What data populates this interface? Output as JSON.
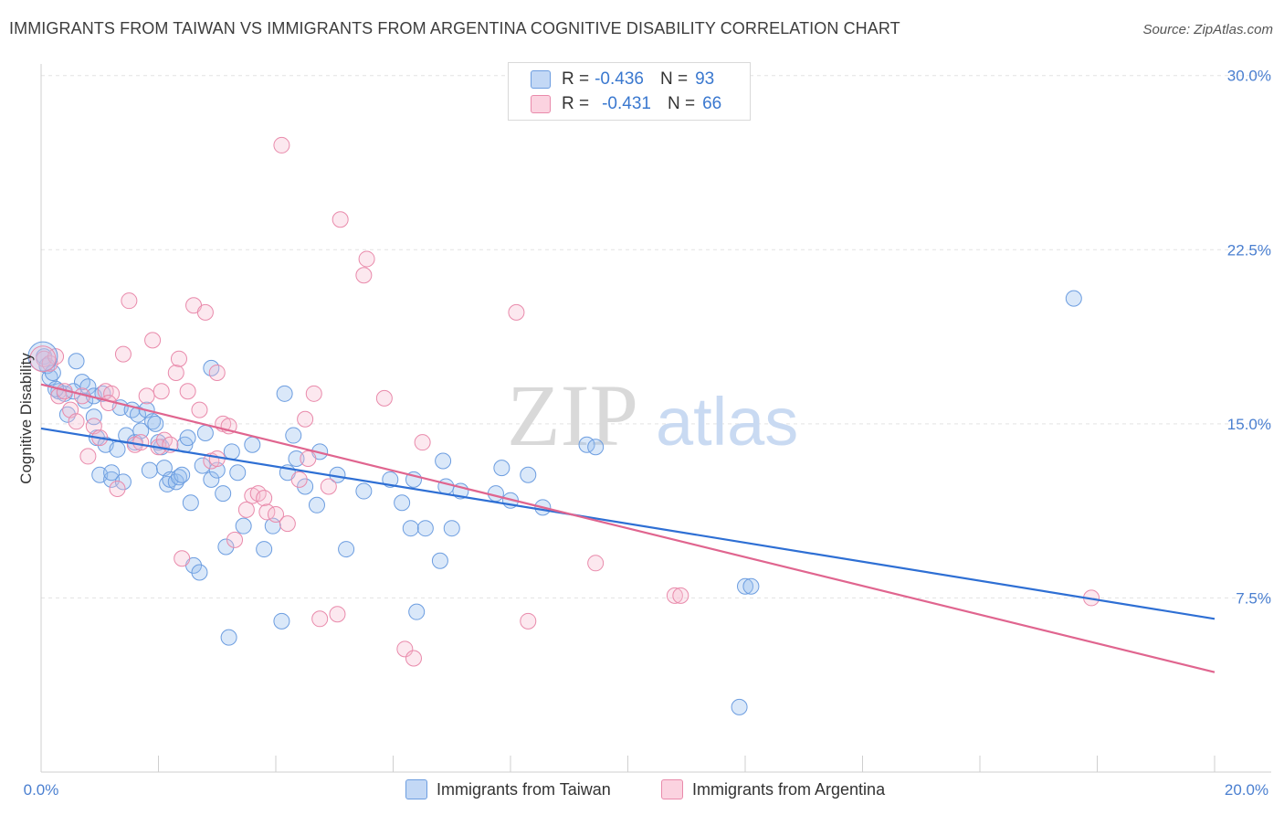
{
  "title": "IMMIGRANTS FROM TAIWAN VS IMMIGRANTS FROM ARGENTINA COGNITIVE DISABILITY CORRELATION CHART",
  "source": "Source: ZipAtlas.com",
  "watermark": {
    "zip": "ZIP",
    "atlas": "atlas"
  },
  "legend": {
    "r_label": "R =",
    "n_label": "N =",
    "rows": [
      {
        "r": "-0.436",
        "n": "93",
        "color": "#a9c8f0",
        "border": "#6c9de0"
      },
      {
        "r": "-0.431",
        "n": "66",
        "color": "#f7c0d2",
        "border": "#e98aab"
      }
    ]
  },
  "bottom_legend": [
    {
      "label": "Immigrants from Taiwan",
      "color": "#c3d8f5",
      "border": "#6c9de0"
    },
    {
      "label": "Immigrants from Argentina",
      "color": "#fbd3e0",
      "border": "#e98aab"
    }
  ],
  "chart_data": {
    "type": "scatter",
    "ylabel": "Cognitive Disability",
    "xlim": [
      0,
      20
    ],
    "ylim": [
      0,
      30.5
    ],
    "y_ticks": [
      7.5,
      15.0,
      22.5,
      30.0
    ],
    "y_tick_labels": [
      "7.5%",
      "15.0%",
      "22.5%",
      "30.0%"
    ],
    "x_tick_labels": [
      "0.0%",
      "20.0%"
    ],
    "grid": true,
    "series": [
      {
        "name": "Immigrants from Taiwan",
        "color": "#6c9de0",
        "fill": "rgba(150,189,238,0.35)",
        "trend": {
          "x": [
            0,
            20
          ],
          "y": [
            14.8,
            6.6
          ]
        },
        "points": [
          [
            0.05,
            17.9
          ],
          [
            0.1,
            17.5
          ],
          [
            0.15,
            17.0
          ],
          [
            0.2,
            17.2
          ],
          [
            0.3,
            16.4
          ],
          [
            0.4,
            16.3
          ],
          [
            0.45,
            15.4
          ],
          [
            0.6,
            17.7
          ],
          [
            0.7,
            16.8
          ],
          [
            0.75,
            16.0
          ],
          [
            0.8,
            16.6
          ],
          [
            0.9,
            16.2
          ],
          [
            0.9,
            15.3
          ],
          [
            0.95,
            14.4
          ],
          [
            1.0,
            12.8
          ],
          [
            1.1,
            14.1
          ],
          [
            1.2,
            12.6
          ],
          [
            1.2,
            12.9
          ],
          [
            1.3,
            13.9
          ],
          [
            1.4,
            12.5
          ],
          [
            1.35,
            15.7
          ],
          [
            1.45,
            14.5
          ],
          [
            1.55,
            15.6
          ],
          [
            1.6,
            14.2
          ],
          [
            1.65,
            15.4
          ],
          [
            1.7,
            14.7
          ],
          [
            1.8,
            15.6
          ],
          [
            1.85,
            13.0
          ],
          [
            1.9,
            15.1
          ],
          [
            1.95,
            15.0
          ],
          [
            2.05,
            14.0
          ],
          [
            2.1,
            13.1
          ],
          [
            2.15,
            12.4
          ],
          [
            2.2,
            12.6
          ],
          [
            2.3,
            12.5
          ],
          [
            2.35,
            12.7
          ],
          [
            2.4,
            12.8
          ],
          [
            2.45,
            14.1
          ],
          [
            2.5,
            14.4
          ],
          [
            2.55,
            11.6
          ],
          [
            2.6,
            8.9
          ],
          [
            2.7,
            8.6
          ],
          [
            2.75,
            13.2
          ],
          [
            2.8,
            14.6
          ],
          [
            2.9,
            12.6
          ],
          [
            2.9,
            17.4
          ],
          [
            3.1,
            12.0
          ],
          [
            3.15,
            9.7
          ],
          [
            3.2,
            5.8
          ],
          [
            3.25,
            13.8
          ],
          [
            3.35,
            12.9
          ],
          [
            3.45,
            10.6
          ],
          [
            3.6,
            14.1
          ],
          [
            3.8,
            9.6
          ],
          [
            3.95,
            10.6
          ],
          [
            4.1,
            6.5
          ],
          [
            4.15,
            16.3
          ],
          [
            4.2,
            12.9
          ],
          [
            4.3,
            14.5
          ],
          [
            4.35,
            13.5
          ],
          [
            4.5,
            12.3
          ],
          [
            4.7,
            11.5
          ],
          [
            4.75,
            13.8
          ],
          [
            5.05,
            12.8
          ],
          [
            5.2,
            9.6
          ],
          [
            5.5,
            12.1
          ],
          [
            5.95,
            12.6
          ],
          [
            6.15,
            11.6
          ],
          [
            6.3,
            10.5
          ],
          [
            6.35,
            12.6
          ],
          [
            6.4,
            6.9
          ],
          [
            6.55,
            10.5
          ],
          [
            6.8,
            9.1
          ],
          [
            6.85,
            13.4
          ],
          [
            6.9,
            12.3
          ],
          [
            7.0,
            10.5
          ],
          [
            7.15,
            12.1
          ],
          [
            7.75,
            12.0
          ],
          [
            7.85,
            13.1
          ],
          [
            8.0,
            11.7
          ],
          [
            8.3,
            12.8
          ],
          [
            8.55,
            11.4
          ],
          [
            9.3,
            14.1
          ],
          [
            9.45,
            14.0
          ],
          [
            11.9,
            2.8
          ],
          [
            12.0,
            8.0
          ],
          [
            12.1,
            8.0
          ],
          [
            17.6,
            20.4
          ],
          [
            0.25,
            16.5
          ],
          [
            0.55,
            16.4
          ],
          [
            1.05,
            16.3
          ],
          [
            2.0,
            14.2
          ],
          [
            3.0,
            13.0
          ]
        ]
      },
      {
        "name": "Immigrants from Argentina",
        "color": "#e98aab",
        "fill": "rgba(247,188,208,0.35)",
        "trend": {
          "x": [
            0,
            20
          ],
          "y": [
            16.7,
            4.3
          ]
        },
        "points": [
          [
            0.05,
            17.8
          ],
          [
            0.15,
            17.6
          ],
          [
            0.3,
            16.2
          ],
          [
            0.4,
            16.4
          ],
          [
            0.5,
            15.6
          ],
          [
            0.6,
            15.1
          ],
          [
            0.7,
            16.2
          ],
          [
            0.8,
            13.6
          ],
          [
            0.9,
            14.9
          ],
          [
            1.0,
            14.4
          ],
          [
            1.1,
            16.4
          ],
          [
            1.2,
            16.3
          ],
          [
            1.3,
            12.2
          ],
          [
            1.4,
            18.0
          ],
          [
            1.5,
            20.3
          ],
          [
            1.6,
            14.1
          ],
          [
            1.7,
            14.2
          ],
          [
            1.8,
            16.2
          ],
          [
            1.9,
            18.6
          ],
          [
            2.0,
            14.0
          ],
          [
            2.05,
            16.4
          ],
          [
            2.1,
            14.3
          ],
          [
            2.2,
            14.1
          ],
          [
            2.3,
            17.2
          ],
          [
            2.35,
            17.8
          ],
          [
            2.4,
            9.2
          ],
          [
            2.5,
            16.4
          ],
          [
            2.6,
            20.1
          ],
          [
            2.7,
            15.6
          ],
          [
            2.8,
            19.8
          ],
          [
            2.9,
            13.4
          ],
          [
            3.0,
            17.2
          ],
          [
            3.1,
            15.0
          ],
          [
            3.2,
            14.9
          ],
          [
            3.3,
            10.0
          ],
          [
            3.5,
            11.3
          ],
          [
            3.6,
            11.9
          ],
          [
            3.7,
            12.0
          ],
          [
            3.8,
            11.8
          ],
          [
            3.85,
            11.2
          ],
          [
            4.0,
            11.1
          ],
          [
            4.1,
            27.0
          ],
          [
            4.2,
            10.7
          ],
          [
            4.4,
            12.6
          ],
          [
            4.5,
            15.2
          ],
          [
            4.55,
            13.5
          ],
          [
            4.65,
            16.3
          ],
          [
            4.75,
            6.6
          ],
          [
            4.9,
            12.3
          ],
          [
            5.05,
            6.8
          ],
          [
            5.1,
            23.8
          ],
          [
            5.5,
            21.4
          ],
          [
            5.55,
            22.1
          ],
          [
            5.85,
            16.1
          ],
          [
            6.2,
            5.3
          ],
          [
            6.35,
            4.9
          ],
          [
            6.5,
            14.2
          ],
          [
            8.1,
            19.8
          ],
          [
            8.3,
            6.5
          ],
          [
            9.45,
            9.0
          ],
          [
            10.8,
            7.6
          ],
          [
            10.9,
            7.6
          ],
          [
            17.9,
            7.5
          ],
          [
            0.25,
            17.9
          ],
          [
            1.15,
            15.9
          ],
          [
            3.0,
            13.5
          ]
        ]
      }
    ]
  }
}
